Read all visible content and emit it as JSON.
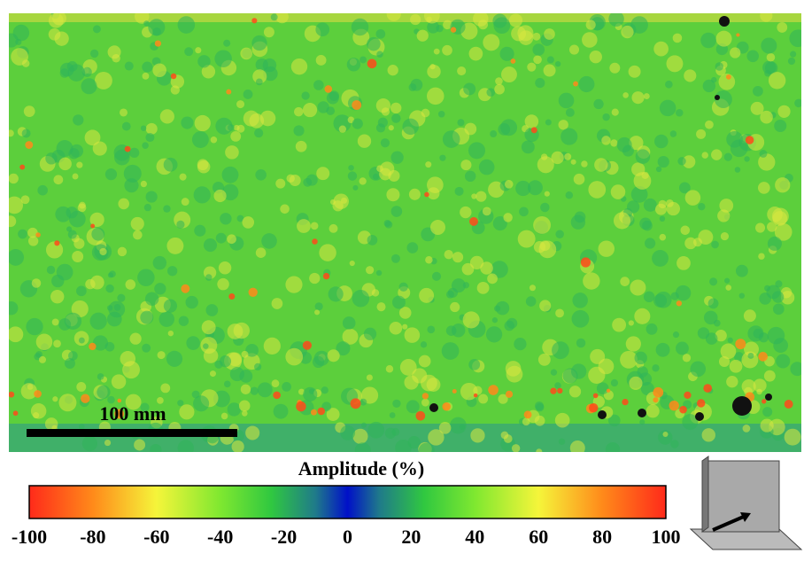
{
  "scan": {
    "scale_bar_label": "100 mm"
  },
  "colorbar": {
    "title": "Amplitude (%)",
    "range": [
      -100,
      100
    ],
    "ticks": [
      -100,
      -80,
      -60,
      -40,
      -20,
      0,
      20,
      40,
      60,
      80,
      100
    ]
  }
}
